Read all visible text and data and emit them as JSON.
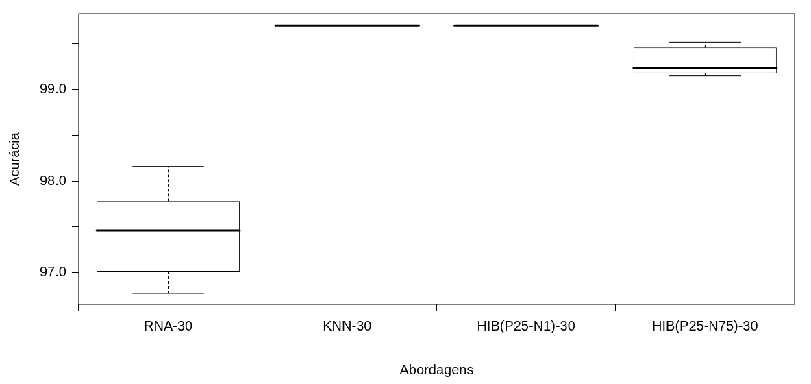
{
  "chart_data": {
    "type": "box",
    "xlabel": "Abordagens",
    "ylabel": "Acurácia",
    "categories": [
      "RNA-30",
      "KNN-30",
      "HIB(P25-N1)-30",
      "HIB(P25-N75)-30"
    ],
    "boxes": [
      {
        "low": 96.77,
        "q1": 97.01,
        "median": 97.46,
        "q3": 97.78,
        "high": 98.16
      },
      {
        "low": 99.7,
        "q1": 99.7,
        "median": 99.7,
        "q3": 99.7,
        "high": 99.7
      },
      {
        "low": 99.7,
        "q1": 99.7,
        "median": 99.7,
        "q3": 99.7,
        "high": 99.7
      },
      {
        "low": 99.15,
        "q1": 99.18,
        "median": 99.24,
        "q3": 99.46,
        "high": 99.52
      }
    ],
    "ylim": [
      96.65,
      99.83
    ],
    "yticks": [
      {
        "value": 97,
        "label": "97.0"
      },
      {
        "value": 97.5,
        "label": null
      },
      {
        "value": 98,
        "label": "98.0"
      },
      {
        "value": 98.5,
        "label": null
      },
      {
        "value": 99,
        "label": "99.0"
      },
      {
        "value": 99.5,
        "label": null
      }
    ],
    "grid": false,
    "legend": false
  }
}
